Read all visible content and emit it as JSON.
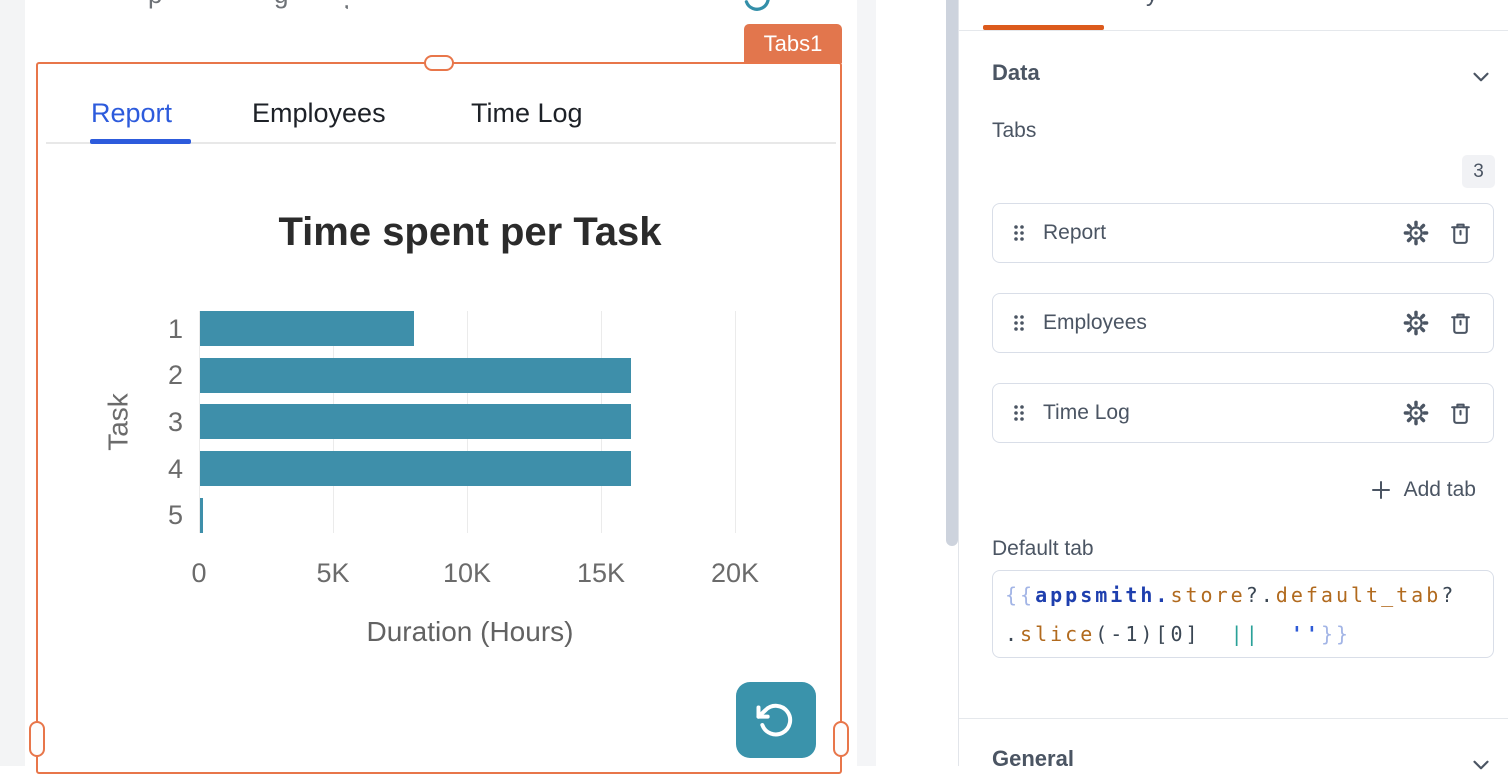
{
  "widget": {
    "badge": "Tabs1"
  },
  "canvas": {
    "tabs": [
      {
        "label": "Report",
        "active": true
      },
      {
        "label": "Employees",
        "active": false
      },
      {
        "label": "Time Log",
        "active": false
      }
    ],
    "cropped_fragments": {
      "glyphs": [
        "p",
        "g",
        ","
      ],
      "pane_tab_descender": "y"
    },
    "refresh_icon": "rotate-ccw-icon"
  },
  "chart_data": {
    "type": "bar",
    "orientation": "horizontal",
    "title": "Time spent per Task",
    "categories": [
      "1",
      "2",
      "3",
      "4",
      "5"
    ],
    "values": [
      8000,
      16100,
      16100,
      16100,
      100
    ],
    "xlabel": "Duration (Hours)",
    "ylabel": "Task",
    "xlim": [
      0,
      20000
    ],
    "xticks": [
      {
        "v": 0,
        "label": "0"
      },
      {
        "v": 5000,
        "label": "5K"
      },
      {
        "v": 10000,
        "label": "10K"
      },
      {
        "v": 15000,
        "label": "15K"
      },
      {
        "v": 20000,
        "label": "20K"
      }
    ],
    "grid": true,
    "legend": false,
    "bar_color": "#3e8faa"
  },
  "pane": {
    "data_section": "Data",
    "general_section": "General",
    "tabs_label": "Tabs",
    "tabs_count": "3",
    "tab_items": [
      {
        "label": "Report"
      },
      {
        "label": "Employees"
      },
      {
        "label": "Time Log"
      }
    ],
    "add_tab_label": "Add tab",
    "default_tab_label": "Default tab",
    "default_tab_code_text": "{{appsmith.store?.default_tab?.slice(-1)[0] || ''}}",
    "code_lines": [
      [
        [
          "{{",
          "brace"
        ],
        [
          "appsmith.",
          "kw"
        ],
        [
          "store",
          "prop"
        ],
        [
          "?.",
          "plain"
        ],
        [
          "default_tab",
          "prop"
        ],
        [
          "?",
          "plain"
        ]
      ],
      [
        [
          ".",
          "plain"
        ],
        [
          "slice",
          "prop"
        ],
        [
          "(-1)[0]",
          "plain"
        ],
        [
          "  ",
          "plain"
        ],
        [
          "||",
          "op"
        ],
        [
          "  ",
          "plain"
        ],
        [
          "''",
          "str"
        ],
        [
          "}}",
          "brace"
        ]
      ]
    ]
  },
  "colors": {
    "selection_orange": "#e8764a",
    "badge_orange": "#e2764d",
    "active_tab_blue": "#2d5bdc",
    "bar_teal": "#3e8faa",
    "refresh_teal": "#3a93ab",
    "pane_text": "#4b5563",
    "pane_accent_orange": "#dc5a1c"
  }
}
